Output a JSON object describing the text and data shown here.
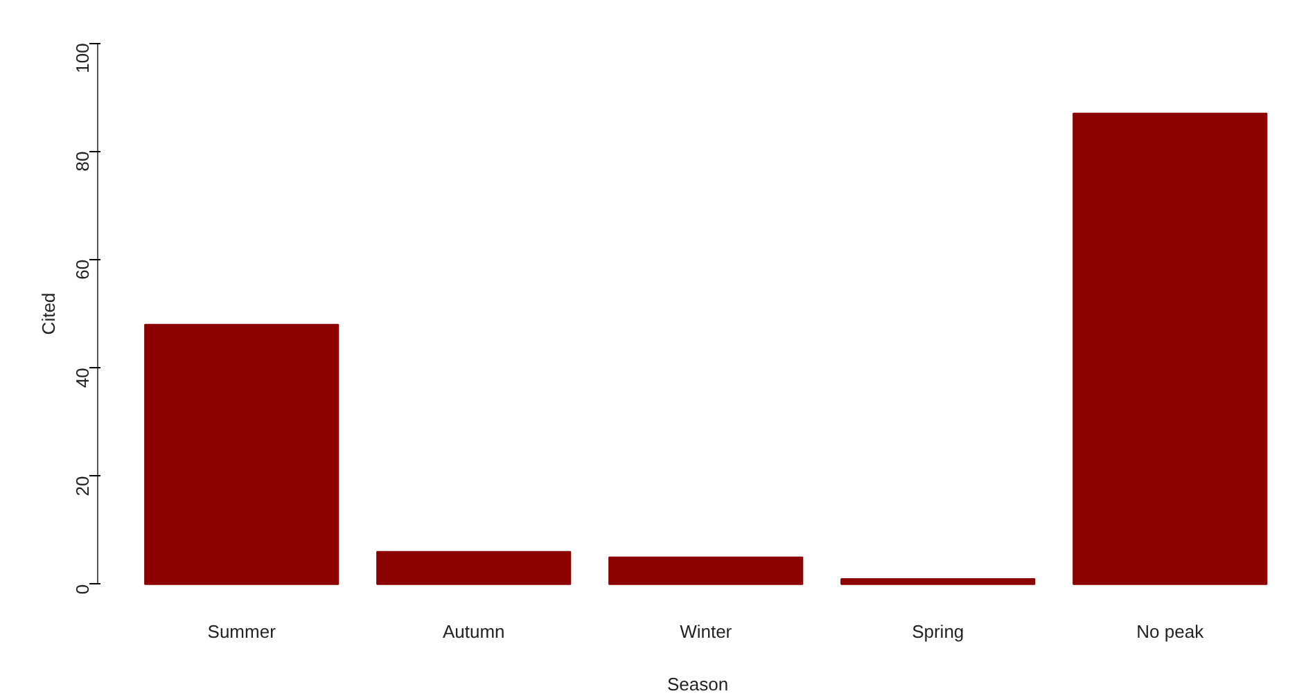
{
  "chart_data": {
    "type": "bar",
    "xlabel": "Season",
    "ylabel": "Cited",
    "categories": [
      "Summer",
      "Autumn",
      "Winter",
      "Spring",
      "No peak"
    ],
    "values": [
      48,
      6,
      5,
      1,
      87
    ],
    "color": "#8b0000",
    "ylim": [
      0,
      100
    ],
    "yticks": [
      0,
      20,
      40,
      60,
      80,
      100
    ],
    "grid": false
  }
}
